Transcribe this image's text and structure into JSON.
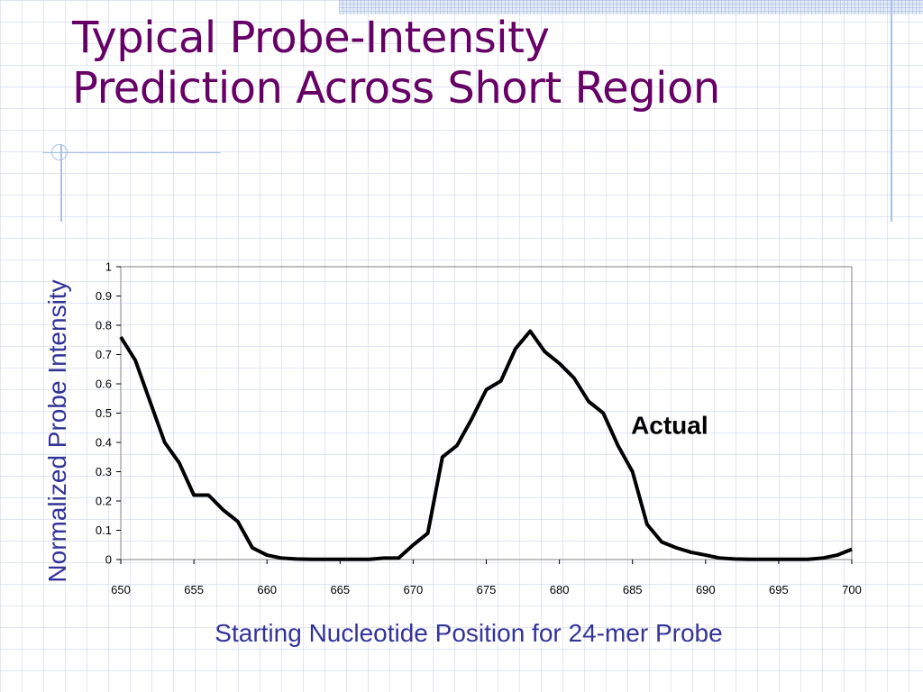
{
  "slide": {
    "title_line1": "Typical Probe-Intensity",
    "title_line2": "Prediction Across Short Region",
    "title_color": "#660066",
    "axis_label_color": "#333399"
  },
  "chart_data": {
    "type": "line",
    "title": "",
    "xlabel": "Starting Nucleotide Position for 24-mer Probe",
    "ylabel": "Normalized Probe Intensity",
    "xlim": [
      650,
      700
    ],
    "ylim": [
      0,
      1
    ],
    "xticks": [
      650,
      655,
      660,
      665,
      670,
      675,
      680,
      685,
      690,
      695,
      700
    ],
    "yticks": [
      0,
      0.1,
      0.2,
      0.3,
      0.4,
      0.5,
      0.6,
      0.7,
      0.8,
      0.9,
      1
    ],
    "ytick_labels": [
      "0",
      "0.1",
      "0.2",
      "0.3",
      "0.4",
      "0.5",
      "0.6",
      "0.7",
      "0.8",
      "0.9",
      "1"
    ],
    "grid": false,
    "series": [
      {
        "name": "Actual",
        "color": "#000000",
        "x": [
          650,
          651,
          652,
          653,
          654,
          655,
          656,
          657,
          658,
          659,
          660,
          661,
          662,
          663,
          664,
          665,
          666,
          667,
          668,
          669,
          670,
          671,
          672,
          673,
          674,
          675,
          676,
          677,
          678,
          679,
          680,
          681,
          682,
          683,
          684,
          685,
          686,
          687,
          688,
          689,
          690,
          691,
          692,
          693,
          694,
          695,
          696,
          697,
          698,
          699,
          700
        ],
        "y": [
          0.76,
          0.68,
          0.54,
          0.4,
          0.33,
          0.22,
          0.22,
          0.17,
          0.13,
          0.04,
          0.015,
          0.005,
          0.002,
          0.001,
          0.001,
          0.001,
          0.001,
          0.001,
          0.005,
          0.005,
          0.05,
          0.09,
          0.35,
          0.39,
          0.48,
          0.58,
          0.61,
          0.72,
          0.78,
          0.71,
          0.67,
          0.62,
          0.54,
          0.5,
          0.39,
          0.3,
          0.12,
          0.06,
          0.04,
          0.025,
          0.015,
          0.005,
          0.002,
          0.001,
          0.001,
          0.001,
          0.001,
          0.001,
          0.005,
          0.015,
          0.035
        ]
      }
    ]
  }
}
